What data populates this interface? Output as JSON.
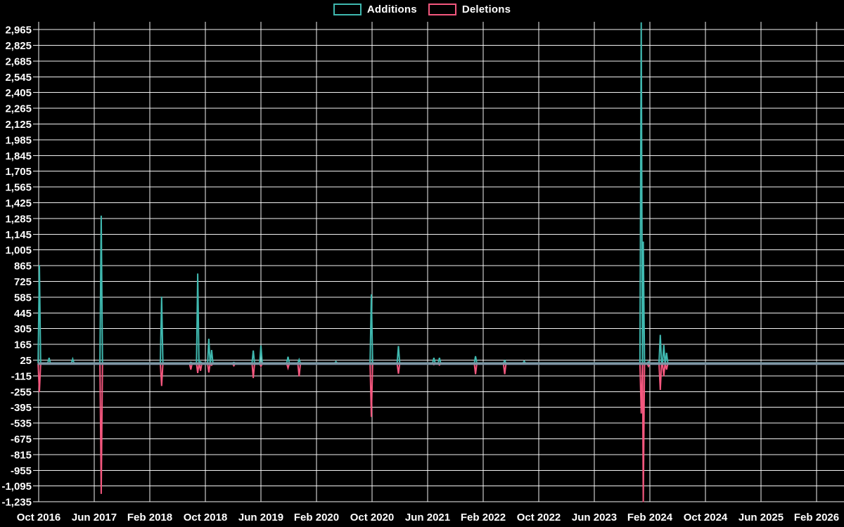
{
  "chart_data": {
    "type": "line",
    "title": "",
    "legend_position": "top-center",
    "background_color": "#000000",
    "grid": true,
    "grid_color": "#ffffff",
    "baseline_color": "#7f95a5",
    "x_axis": {
      "tick_labels": [
        "Oct 2016",
        "Jun 2017",
        "Feb 2018",
        "Oct 2018",
        "Jun 2019",
        "Feb 2020",
        "Oct 2020",
        "Jun 2021",
        "Feb 2022",
        "Oct 2022",
        "Jun 2023",
        "Feb 2024",
        "Oct 2024",
        "Jun 2025",
        "Feb 2026"
      ],
      "tick_months": [
        0,
        8,
        16,
        24,
        32,
        40,
        48,
        56,
        64,
        72,
        80,
        88,
        96,
        104,
        112
      ],
      "range": [
        "Oct 2016",
        "Feb 2026"
      ]
    },
    "y_axis": {
      "tick_labels": [
        "2,965",
        "2,825",
        "2,685",
        "2,545",
        "2,405",
        "2,265",
        "2,125",
        "1,985",
        "1,845",
        "1,705",
        "1,565",
        "1,425",
        "1,285",
        "1,145",
        "1,005",
        "865",
        "725",
        "585",
        "445",
        "305",
        "165",
        "25",
        "-115",
        "-255",
        "-395",
        "-535",
        "-675",
        "-815",
        "-955",
        "-1,095",
        "-1,235"
      ],
      "tick_values": [
        2965,
        2825,
        2685,
        2545,
        2405,
        2265,
        2125,
        1985,
        1845,
        1705,
        1565,
        1425,
        1285,
        1145,
        1005,
        865,
        725,
        585,
        445,
        305,
        165,
        25,
        -115,
        -255,
        -395,
        -535,
        -675,
        -815,
        -955,
        -1095,
        -1235
      ],
      "min": -1235,
      "max": 2965,
      "step": 140
    },
    "series": [
      {
        "name": "Additions",
        "color": "#3fb8af",
        "baseline": 0
      },
      {
        "name": "Deletions",
        "color": "#f4577e",
        "baseline": -7
      }
    ],
    "points": [
      {
        "date": "2016-10",
        "m": 0.1,
        "additions": 870,
        "deletions": -260
      },
      {
        "date": "2016-11",
        "m": 1.5,
        "additions": 45,
        "deletions": -10
      },
      {
        "date": "2017-03",
        "m": 4.9,
        "additions": 35,
        "deletions": -8
      },
      {
        "date": "2017-07",
        "m": 9.0,
        "additions": 1310,
        "deletions": -1165
      },
      {
        "date": "2018-03",
        "m": 17.7,
        "additions": 590,
        "deletions": -205
      },
      {
        "date": "2018-08",
        "m": 21.9,
        "additions": 6,
        "deletions": -60
      },
      {
        "date": "2018-09",
        "m": 22.9,
        "additions": 795,
        "deletions": -90
      },
      {
        "date": "2018-09",
        "m": 23.3,
        "additions": 10,
        "deletions": -70
      },
      {
        "date": "2018-10",
        "m": 24.5,
        "additions": 215,
        "deletions": -85
      },
      {
        "date": "2018-11",
        "m": 24.9,
        "additions": 115,
        "deletions": -20
      },
      {
        "date": "2019-02",
        "m": 28.1,
        "additions": 5,
        "deletions": -25
      },
      {
        "date": "2019-05",
        "m": 30.9,
        "additions": 110,
        "deletions": -135
      },
      {
        "date": "2019-06",
        "m": 32.0,
        "additions": 155,
        "deletions": -30
      },
      {
        "date": "2019-10",
        "m": 35.9,
        "additions": 55,
        "deletions": -45
      },
      {
        "date": "2019-11",
        "m": 37.5,
        "additions": 30,
        "deletions": -120
      },
      {
        "date": "2020-04",
        "m": 42.8,
        "additions": 12,
        "deletions": -10
      },
      {
        "date": "2020-10",
        "m": 47.9,
        "additions": 610,
        "deletions": -480
      },
      {
        "date": "2021-02",
        "m": 51.8,
        "additions": 150,
        "deletions": -95
      },
      {
        "date": "2021-07",
        "m": 56.9,
        "additions": 45,
        "deletions": -15
      },
      {
        "date": "2021-07",
        "m": 57.7,
        "additions": 45,
        "deletions": -18
      },
      {
        "date": "2021-12",
        "m": 62.9,
        "additions": 60,
        "deletions": -100
      },
      {
        "date": "2022-05",
        "m": 67.1,
        "additions": 20,
        "deletions": -100
      },
      {
        "date": "2022-08",
        "m": 69.9,
        "additions": 15,
        "deletions": -5
      },
      {
        "date": "2024-01",
        "m": 86.75,
        "additions": 3030,
        "deletions": -450,
        "clipped": true
      },
      {
        "date": "2024-01",
        "m": 87.05,
        "additions": 1080,
        "deletions": -1240
      },
      {
        "date": "2024-02",
        "m": 87.8,
        "additions": 10,
        "deletions": -30
      },
      {
        "date": "2024-03",
        "m": 89.5,
        "additions": 250,
        "deletions": -240
      },
      {
        "date": "2024-04",
        "m": 90.0,
        "additions": 160,
        "deletions": -120
      },
      {
        "date": "2024-04",
        "m": 90.4,
        "additions": 90,
        "deletions": -60
      }
    ]
  }
}
